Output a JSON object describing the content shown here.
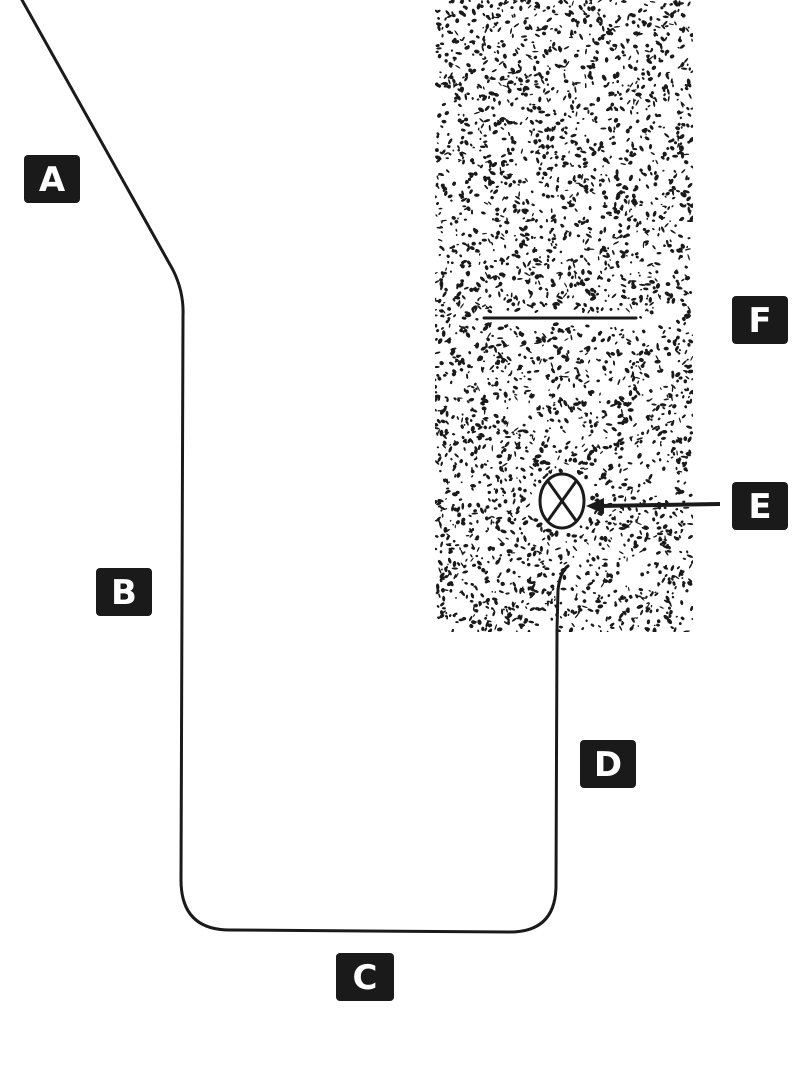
{
  "labels": {
    "a": "A",
    "b": "B",
    "c": "C",
    "d": "D",
    "e": "E",
    "f": "F"
  },
  "colors": {
    "ink": "#1a1a1a",
    "background": "#ffffff"
  }
}
